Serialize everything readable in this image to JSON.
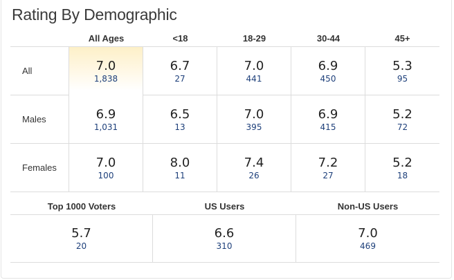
{
  "title": "Rating By Demographic",
  "columns": [
    "All Ages",
    "<18",
    "18-29",
    "30-44",
    "45+"
  ],
  "rows": [
    {
      "label": "All",
      "cells": [
        {
          "rating": "7.0",
          "votes": "1,838"
        },
        {
          "rating": "6.7",
          "votes": "27"
        },
        {
          "rating": "7.0",
          "votes": "441"
        },
        {
          "rating": "6.9",
          "votes": "450"
        },
        {
          "rating": "5.3",
          "votes": "95"
        }
      ]
    },
    {
      "label": "Males",
      "cells": [
        {
          "rating": "6.9",
          "votes": "1,031"
        },
        {
          "rating": "6.5",
          "votes": "13"
        },
        {
          "rating": "7.0",
          "votes": "395"
        },
        {
          "rating": "6.9",
          "votes": "415"
        },
        {
          "rating": "5.2",
          "votes": "72"
        }
      ]
    },
    {
      "label": "Females",
      "cells": [
        {
          "rating": "7.0",
          "votes": "100"
        },
        {
          "rating": "8.0",
          "votes": "11"
        },
        {
          "rating": "7.4",
          "votes": "26"
        },
        {
          "rating": "7.2",
          "votes": "27"
        },
        {
          "rating": "5.2",
          "votes": "18"
        }
      ]
    }
  ],
  "groups": [
    {
      "label": "Top 1000 Voters",
      "rating": "5.7",
      "votes": "20"
    },
    {
      "label": "US Users",
      "rating": "6.6",
      "votes": "310"
    },
    {
      "label": "Non-US Users",
      "rating": "7.0",
      "votes": "469"
    }
  ],
  "colors": {
    "highlight": "#fdf0c8",
    "vote_count": "#1d3f7a",
    "border": "#dcdcdc"
  }
}
